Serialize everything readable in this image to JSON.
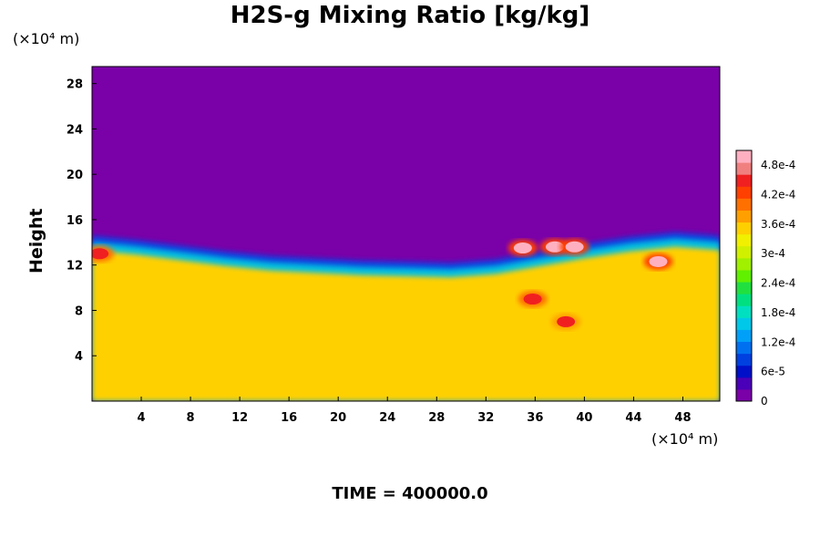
{
  "chart_data": {
    "type": "heatmap",
    "title": "H2S-g Mixing Ratio [kg/kg]",
    "ylabel": "Height",
    "x_unit": "(×10⁴ m)",
    "y_unit": "(×10⁴ m)",
    "xlim": [
      0,
      51
    ],
    "ylim": [
      0,
      29.5
    ],
    "x_ticks": [
      "4",
      "8",
      "12",
      "16",
      "20",
      "24",
      "28",
      "32",
      "36",
      "40",
      "44",
      "48"
    ],
    "y_ticks": [
      "4",
      "8",
      "12",
      "16",
      "20",
      "24",
      "28"
    ],
    "x_tick_values": [
      4,
      8,
      12,
      16,
      20,
      24,
      28,
      32,
      36,
      40,
      44,
      48
    ],
    "y_tick_values": [
      4,
      8,
      12,
      16,
      20,
      24,
      28
    ],
    "colorbar": {
      "ticks": [
        "0",
        "6e-5",
        "1.2e-4",
        "1.8e-4",
        "2.4e-4",
        "3e-4",
        "3.6e-4",
        "4.2e-4",
        "4.8e-4"
      ],
      "tick_values": [
        0,
        6e-05,
        0.00012,
        0.00018,
        0.00024,
        0.0003,
        0.00036,
        0.00042,
        0.00048
      ],
      "range": [
        0,
        0.00051
      ],
      "colors": [
        "#7a00a8",
        "#4a00b8",
        "#0010c8",
        "#0040e0",
        "#0070f0",
        "#00a0f8",
        "#00c8e8",
        "#00e0c0",
        "#00e080",
        "#20e040",
        "#60f000",
        "#a0f000",
        "#d0f000",
        "#f0f000",
        "#ffd000",
        "#ffa000",
        "#ff7000",
        "#ff4000",
        "#f02020",
        "#f08080",
        "#ffb0c0"
      ]
    },
    "field": {
      "upper_value": 0,
      "lower_value": 0.00034,
      "interface_height": [
        13.8,
        13.4,
        12.9,
        12.4,
        12.0,
        11.8,
        11.6,
        11.5,
        11.4,
        11.7,
        12.4,
        13.1,
        13.7,
        14.1,
        13.8
      ]
    },
    "features": [
      {
        "x": 35.0,
        "y": 13.5,
        "value": 0.0005
      },
      {
        "x": 37.6,
        "y": 13.6,
        "value": 0.0005
      },
      {
        "x": 39.2,
        "y": 13.6,
        "value": 0.0005
      },
      {
        "x": 46.0,
        "y": 12.3,
        "value": 0.0005
      },
      {
        "x": 35.8,
        "y": 9.0,
        "value": 0.00046
      },
      {
        "x": 38.5,
        "y": 7.0,
        "value": 0.00044
      },
      {
        "x": 0.6,
        "y": 13.0,
        "value": 0.00046
      }
    ],
    "time_label": "TIME = 400000.0"
  }
}
